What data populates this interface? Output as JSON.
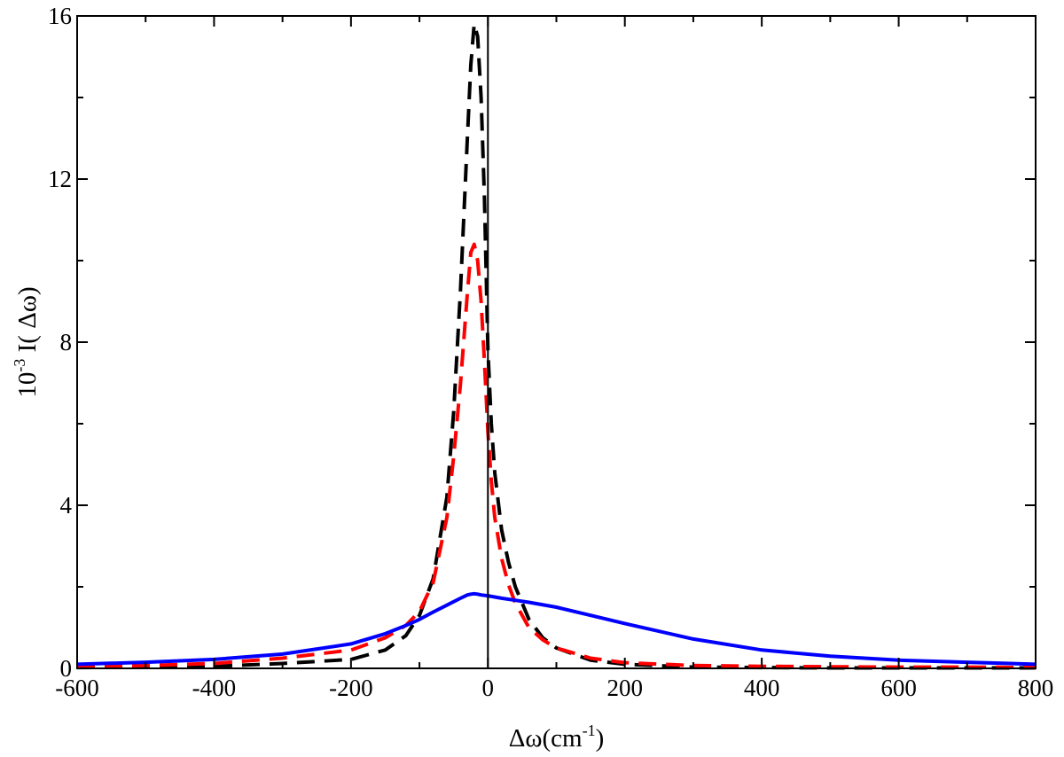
{
  "chart_data": {
    "type": "line",
    "title": "",
    "xlabel": {
      "main": "Δω(cm",
      "sup": "-1",
      "tail": ")"
    },
    "ylabel": {
      "main": "10",
      "sup": "-3",
      "tail": " I( Δω)"
    },
    "xlim": [
      -600,
      800
    ],
    "ylim": [
      0,
      16
    ],
    "x_ticks": [
      -600,
      -400,
      -200,
      0,
      200,
      400,
      600,
      800
    ],
    "y_ticks": [
      0,
      4,
      8,
      12,
      16
    ],
    "x_tick_labels": [
      "-600",
      "-400",
      "-200",
      "0",
      "200",
      "400",
      "600",
      "800"
    ],
    "y_tick_labels": [
      "0",
      "4",
      "8",
      "12",
      "16"
    ],
    "grid": false,
    "legend": "none",
    "reference_line_x": 0,
    "series": [
      {
        "color": "#000000",
        "style": "dashed",
        "x": [
          -600,
          -500,
          -400,
          -300,
          -200,
          -150,
          -120,
          -100,
          -80,
          -60,
          -50,
          -40,
          -30,
          -25,
          -20,
          -15,
          -10,
          -5,
          0,
          5,
          10,
          20,
          30,
          40,
          60,
          80,
          100,
          150,
          200,
          300,
          400,
          500,
          600,
          700,
          800
        ],
        "y": [
          0.02,
          0.03,
          0.05,
          0.12,
          0.22,
          0.45,
          0.8,
          1.3,
          2.2,
          4.2,
          6.3,
          9.3,
          13.0,
          14.8,
          15.8,
          15.5,
          14.0,
          11.5,
          7.8,
          6.0,
          4.8,
          3.4,
          2.6,
          2.0,
          1.2,
          0.75,
          0.5,
          0.2,
          0.1,
          0.03,
          0.02,
          0.01,
          0.01,
          0.01,
          0.01
        ]
      },
      {
        "color": "#ff0000",
        "style": "dashed",
        "x": [
          -600,
          -500,
          -400,
          -300,
          -200,
          -150,
          -120,
          -100,
          -80,
          -60,
          -50,
          -40,
          -30,
          -25,
          -20,
          -15,
          -10,
          -5,
          0,
          5,
          10,
          20,
          30,
          40,
          60,
          80,
          100,
          150,
          200,
          300,
          400,
          500,
          600,
          700,
          800
        ],
        "y": [
          0.05,
          0.07,
          0.12,
          0.25,
          0.45,
          0.75,
          1.05,
          1.4,
          2.1,
          3.7,
          5.2,
          7.0,
          9.2,
          10.2,
          10.4,
          10.0,
          9.0,
          7.5,
          5.8,
          4.6,
          3.7,
          2.7,
          2.05,
          1.6,
          1.0,
          0.7,
          0.5,
          0.25,
          0.14,
          0.07,
          0.05,
          0.04,
          0.03,
          0.03,
          0.02
        ]
      },
      {
        "color": "#0000ff",
        "style": "solid",
        "x": [
          -600,
          -500,
          -400,
          -300,
          -200,
          -150,
          -120,
          -100,
          -80,
          -60,
          -40,
          -30,
          -25,
          -20,
          -15,
          -10,
          0,
          20,
          40,
          60,
          100,
          150,
          200,
          300,
          400,
          500,
          600,
          700,
          800
        ],
        "y": [
          0.1,
          0.15,
          0.22,
          0.35,
          0.6,
          0.85,
          1.05,
          1.2,
          1.38,
          1.55,
          1.72,
          1.8,
          1.82,
          1.83,
          1.82,
          1.8,
          1.78,
          1.72,
          1.67,
          1.62,
          1.5,
          1.3,
          1.1,
          0.72,
          0.45,
          0.3,
          0.2,
          0.15,
          0.1
        ]
      }
    ]
  }
}
